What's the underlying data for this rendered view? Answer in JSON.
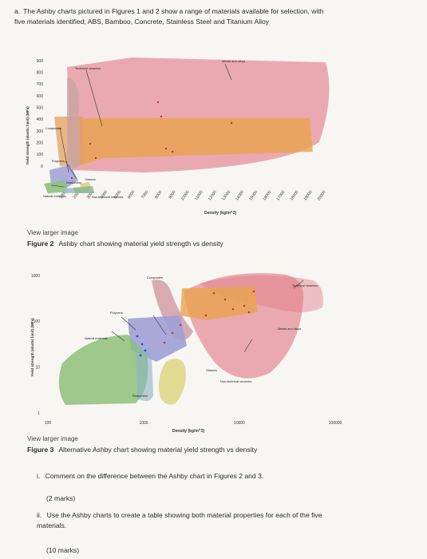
{
  "intro": {
    "label": "a.",
    "text": "The Ashby charts pictured in Figures 1 and 2 show a range of materials available for selection, with five materials identified; ABS, Bamboo, Concrete, Stainless Steel and Titanium Alloy"
  },
  "figure2": {
    "view_link": "View larger image",
    "caption_label": "Figure 2",
    "caption_text": "Ashby chart showing material yield strength vs density",
    "chart_data": {
      "type": "scatter",
      "xlabel": "Density (kg/m^3)",
      "ylabel": "Yield strength (elastic limit) (MPa)",
      "x_ticks": [
        "1000",
        "2000",
        "3000",
        "4000",
        "5000",
        "6000",
        "7000",
        "8000",
        "9000",
        "10000",
        "11000",
        "12000",
        "13000",
        "14000",
        "15000",
        "16000",
        "17000",
        "18000",
        "19000",
        "20000"
      ],
      "y_ticks": [
        "0",
        "100",
        "200",
        "300",
        "400",
        "500",
        "600",
        "700",
        "800",
        "900"
      ],
      "xlim": [
        0,
        20000
      ],
      "ylim": [
        0,
        900
      ],
      "region_labels": [
        "Technical ceramics",
        "Metals and alloys",
        "Composites",
        "Polymers",
        "Natural materials",
        "Elastomers",
        "Non-technical ceramics",
        "Glasses"
      ]
    }
  },
  "figure3": {
    "view_link": "View larger image",
    "caption_label": "Figure 3",
    "caption_text": "Alternative Ashby chart showing material yield strength vs density",
    "chart_data": {
      "type": "scatter",
      "xlabel": "Density (kg/m^3)",
      "ylabel": "Yield strength (elastic limit) (MPa)",
      "x_scale": "log",
      "y_scale": "log",
      "x_ticks": [
        "100",
        "1000",
        "10000",
        "100000"
      ],
      "y_ticks": [
        "1",
        "10",
        "100",
        "1000"
      ],
      "region_labels": [
        "Composites",
        "Technical ceramics",
        "Metals and alloys",
        "Polymers",
        "Natural materials",
        "Glasses",
        "Non-technical ceramics",
        "Elastomers"
      ]
    }
  },
  "questions": [
    {
      "label": "i.",
      "text": "Comment on the difference between the Ashby chart in Figures 2 and 3.",
      "marks": "(2 marks)"
    },
    {
      "label": "ii.",
      "text": "Use the Ashby charts to create a table showing both material properties for each of the five materials.",
      "marks": "(10 marks)"
    }
  ]
}
